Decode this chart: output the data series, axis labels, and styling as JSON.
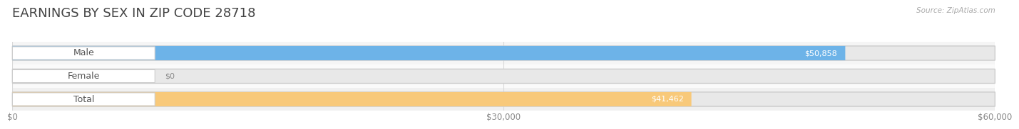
{
  "title": "EARNINGS BY SEX IN ZIP CODE 28718",
  "source": "Source: ZipAtlas.com",
  "categories": [
    "Male",
    "Female",
    "Total"
  ],
  "values": [
    50858,
    0,
    41462
  ],
  "bar_colors": [
    "#6db3e8",
    "#f2a8c0",
    "#f8c97a"
  ],
  "value_labels": [
    "$50,858",
    "$0",
    "$41,462"
  ],
  "tick_labels": [
    "$0",
    "$30,000",
    "$60,000"
  ],
  "tick_values": [
    0,
    30000,
    60000
  ],
  "xmax": 60000,
  "xmin": 0,
  "title_color": "#444444",
  "title_fontsize": 13,
  "bar_height": 0.62,
  "row_bg_colors": [
    "#f5f5f5",
    "#fafafa",
    "#f0f0f0"
  ],
  "label_text_color": "#555555",
  "grid_color": "#d8d8d8",
  "bar_bg_color": "#e8e8e8",
  "bar_border_color": "#cccccc"
}
